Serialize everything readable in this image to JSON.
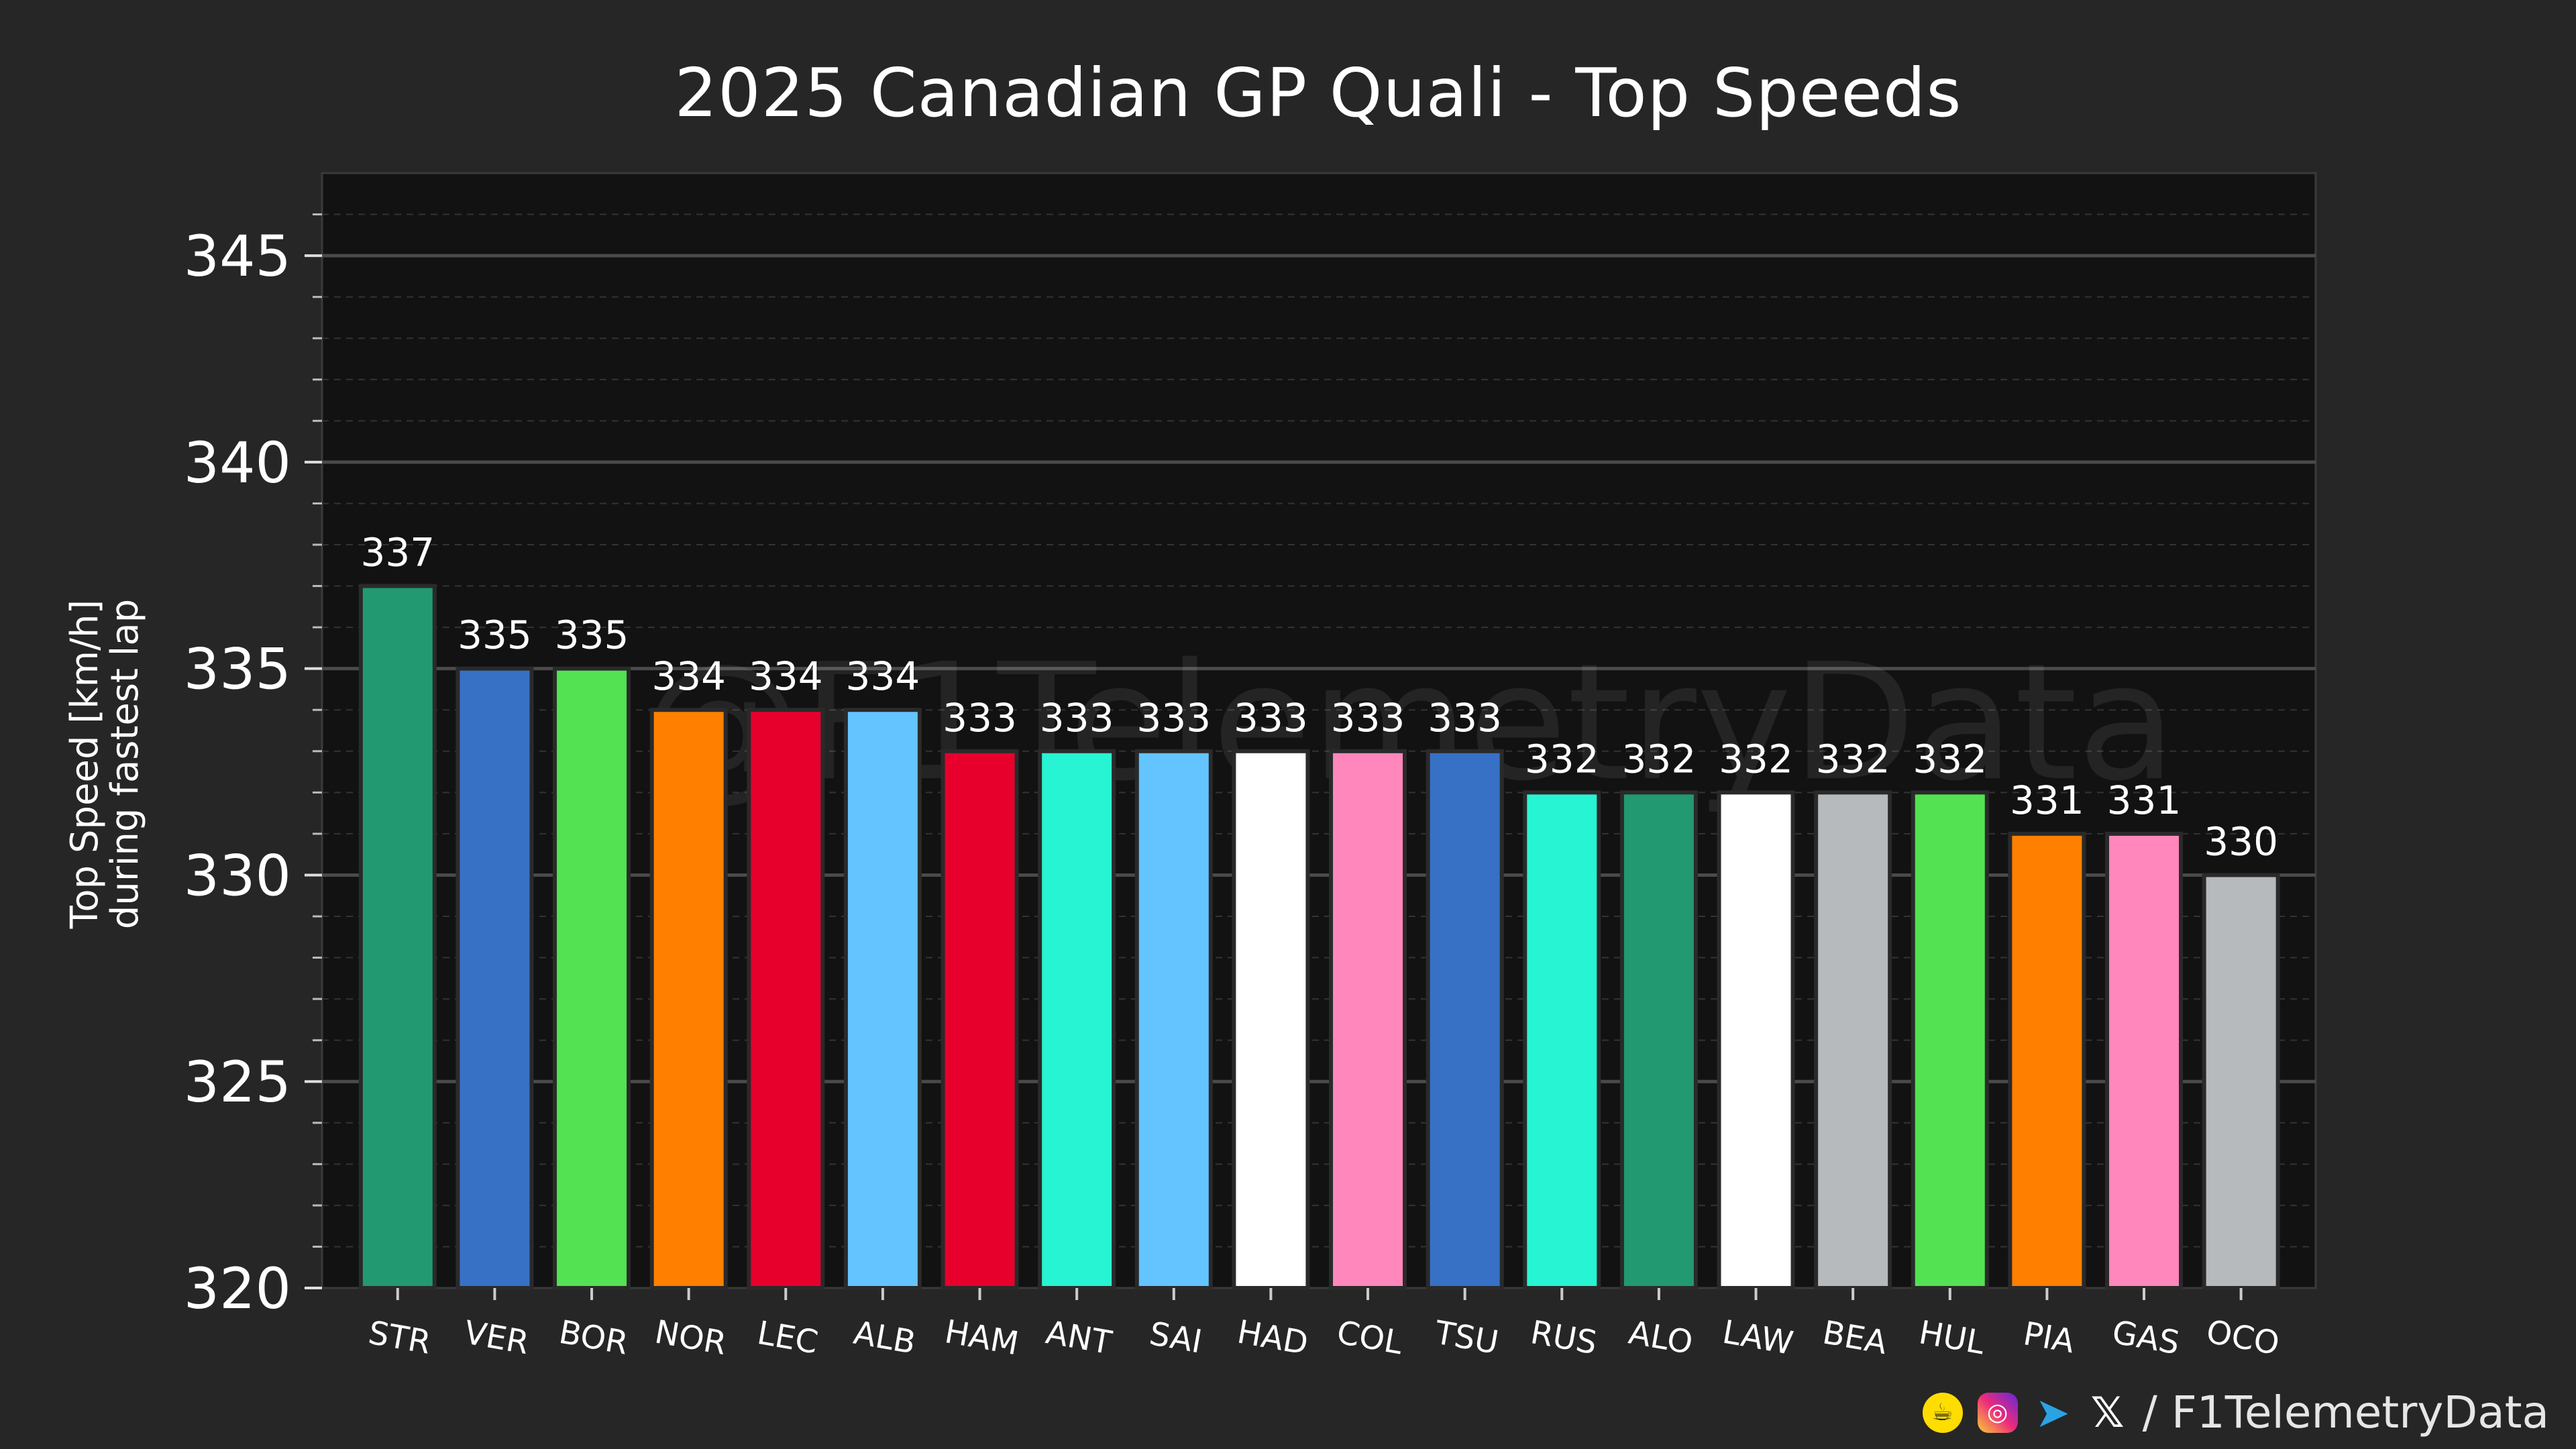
{
  "chart_data": {
    "type": "bar",
    "title": "2025 Canadian GP Quali - Top Speeds",
    "ylabel": [
      "Top Speed [km/h]",
      "during fastest lap"
    ],
    "xlabel": "",
    "categories": [
      "STR",
      "VER",
      "BOR",
      "NOR",
      "LEC",
      "ALB",
      "HAM",
      "ANT",
      "SAI",
      "HAD",
      "COL",
      "TSU",
      "RUS",
      "ALO",
      "LAW",
      "BEA",
      "HUL",
      "PIA",
      "GAS",
      "OCO"
    ],
    "values": [
      337,
      335,
      335,
      334,
      334,
      334,
      333,
      333,
      333,
      333,
      333,
      333,
      332,
      332,
      332,
      332,
      332,
      331,
      331,
      330
    ],
    "colors": [
      "#229971",
      "#3671c6",
      "#52e252",
      "#ff8000",
      "#e8002d",
      "#64c4ff",
      "#e8002d",
      "#27f4d2",
      "#64c4ff",
      "#ffffff",
      "#ff87bc",
      "#3671c6",
      "#27f4d2",
      "#229971",
      "#ffffff",
      "#b6babd",
      "#52e252",
      "#ff8000",
      "#ff87bc",
      "#b6babd"
    ],
    "ylim": [
      320,
      347
    ],
    "yticks": [
      320,
      325,
      330,
      335,
      340,
      345
    ],
    "grid": true,
    "watermark": "@F1TelemetryData"
  },
  "footer": {
    "handle": "/ F1TelemetryData",
    "icons": [
      "coffee-icon",
      "instagram-icon",
      "telegram-icon",
      "x-icon"
    ]
  }
}
